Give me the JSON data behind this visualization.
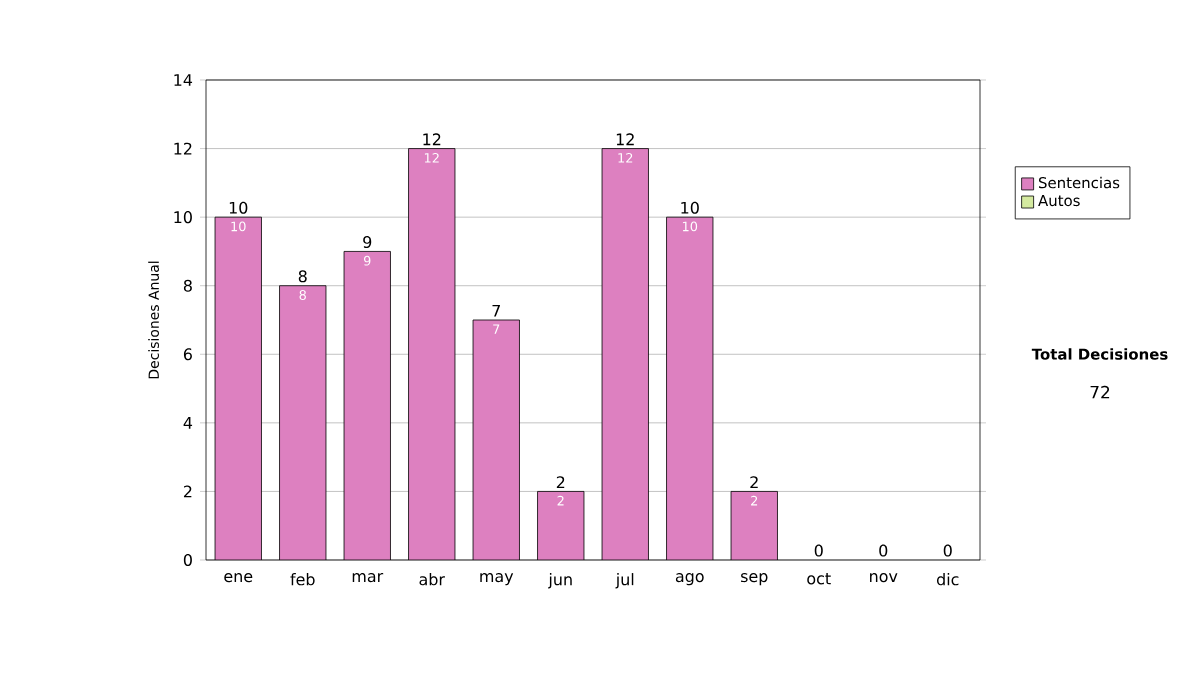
{
  "chart_data": {
    "type": "bar",
    "stacked": true,
    "ylabel": "Decisiones Anual",
    "categories": [
      "ene",
      "feb",
      "mar",
      "abr",
      "may",
      "jun",
      "jul",
      "ago",
      "sep",
      "oct",
      "nov",
      "dic"
    ],
    "series": [
      {
        "name": "Sentencias",
        "color": "#dd80c0",
        "values": [
          10,
          8,
          9,
          12,
          7,
          2,
          12,
          10,
          2,
          0,
          0,
          0
        ],
        "value_labels": [
          "10",
          "8",
          "9",
          "12",
          "7",
          "2",
          "12",
          "10",
          "2",
          null,
          null,
          null
        ]
      },
      {
        "name": "Autos",
        "color": "#d4eaa0",
        "values": [
          0,
          0,
          0,
          0,
          0,
          0,
          0,
          0,
          0,
          0,
          0,
          0
        ]
      }
    ],
    "totals": [
      "10",
      "8",
      "9",
      "12",
      "7",
      "2",
      "12",
      "10",
      "2",
      "0",
      "0",
      "0"
    ],
    "ylim": [
      0,
      14
    ],
    "yticks": [
      0,
      2,
      4,
      6,
      8,
      10,
      12,
      14
    ],
    "grid": "y",
    "legend": "right",
    "annotations": [
      "Total Decisiones",
      "72"
    ]
  }
}
